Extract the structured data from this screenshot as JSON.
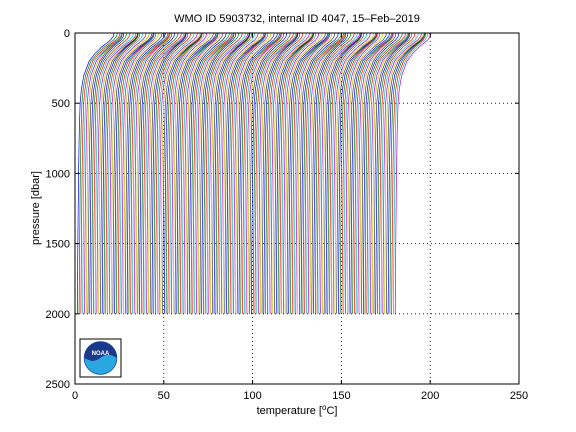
{
  "chart_data": {
    "type": "line",
    "title": "WMO ID 5903732, internal ID 4047, 15–Feb–2019",
    "xlabel_pre": "temperature [",
    "xlabel_sup": "o",
    "xlabel_post": "C]",
    "ylabel": "pressure [dbar]",
    "xlim": [
      0,
      250
    ],
    "ylim": [
      0,
      2500
    ],
    "y_reversed": true,
    "x_ticks": [
      0,
      50,
      100,
      150,
      200,
      250
    ],
    "y_ticks": [
      0,
      500,
      1000,
      1500,
      2000,
      2500
    ],
    "x_tick_labels": [
      "0",
      "50",
      "100",
      "150",
      "200",
      "250"
    ],
    "y_tick_labels": [
      "0",
      "500",
      "1000",
      "1500",
      "2000",
      "2500"
    ],
    "grid": "dotted",
    "profile_count": 180,
    "profile_offset_step": 1.0,
    "profile_pressure_max": 2000,
    "profile_template": {
      "pressure": [
        0,
        25,
        50,
        100,
        150,
        200,
        300,
        400,
        500,
        700,
        1000,
        1500,
        2000
      ],
      "temperature": [
        22.0,
        21.5,
        20.0,
        15.0,
        11.0,
        8.0,
        5.0,
        3.6,
        2.9,
        2.4,
        2.0,
        1.6,
        1.3
      ]
    },
    "colors": [
      "#0000ff",
      "#008000",
      "#ff0000",
      "#00bfbf",
      "#bf00bf",
      "#bfbf00",
      "#404040"
    ],
    "logo": {
      "text": "NOAA",
      "name": "noaa-logo"
    }
  }
}
